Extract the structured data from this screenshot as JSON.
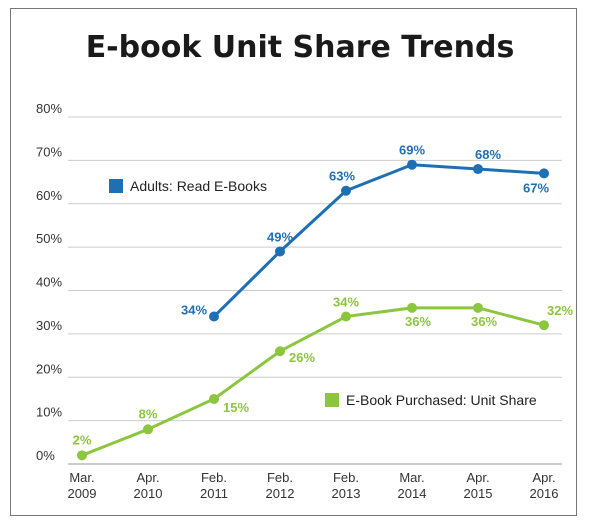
{
  "chart_data": {
    "type": "line",
    "title": "E-book Unit Share Trends",
    "xlabel": "",
    "ylabel": "",
    "ylim": [
      0,
      80
    ],
    "yticks": [
      "0%",
      "10%",
      "20%",
      "30%",
      "40%",
      "50%",
      "60%",
      "70%",
      "80%"
    ],
    "grid": true,
    "categories": [
      {
        "line1": "Mar.",
        "line2": "2009"
      },
      {
        "line1": "Apr.",
        "line2": "2010"
      },
      {
        "line1": "Feb.",
        "line2": "2011"
      },
      {
        "line1": "Feb.",
        "line2": "2012"
      },
      {
        "line1": "Feb.",
        "line2": "2013"
      },
      {
        "line1": "Mar.",
        "line2": "2014"
      },
      {
        "line1": "Apr.",
        "line2": "2015"
      },
      {
        "line1": "Apr.",
        "line2": "2016"
      }
    ],
    "series": [
      {
        "name": "Adults: Read E-Books",
        "color": "#1f6fb5",
        "values": [
          null,
          null,
          34,
          49,
          63,
          69,
          68,
          67
        ],
        "labels": [
          "",
          "",
          "34%",
          "49%",
          "63%",
          "69%",
          "68%",
          "67%"
        ]
      },
      {
        "name": "E-Book Purchased: Unit Share",
        "color": "#8cc63f",
        "values": [
          2,
          8,
          15,
          26,
          34,
          36,
          36,
          32
        ],
        "labels": [
          "2%",
          "8%",
          "15%",
          "26%",
          "34%",
          "36%",
          "36%",
          "32%"
        ]
      }
    ]
  }
}
